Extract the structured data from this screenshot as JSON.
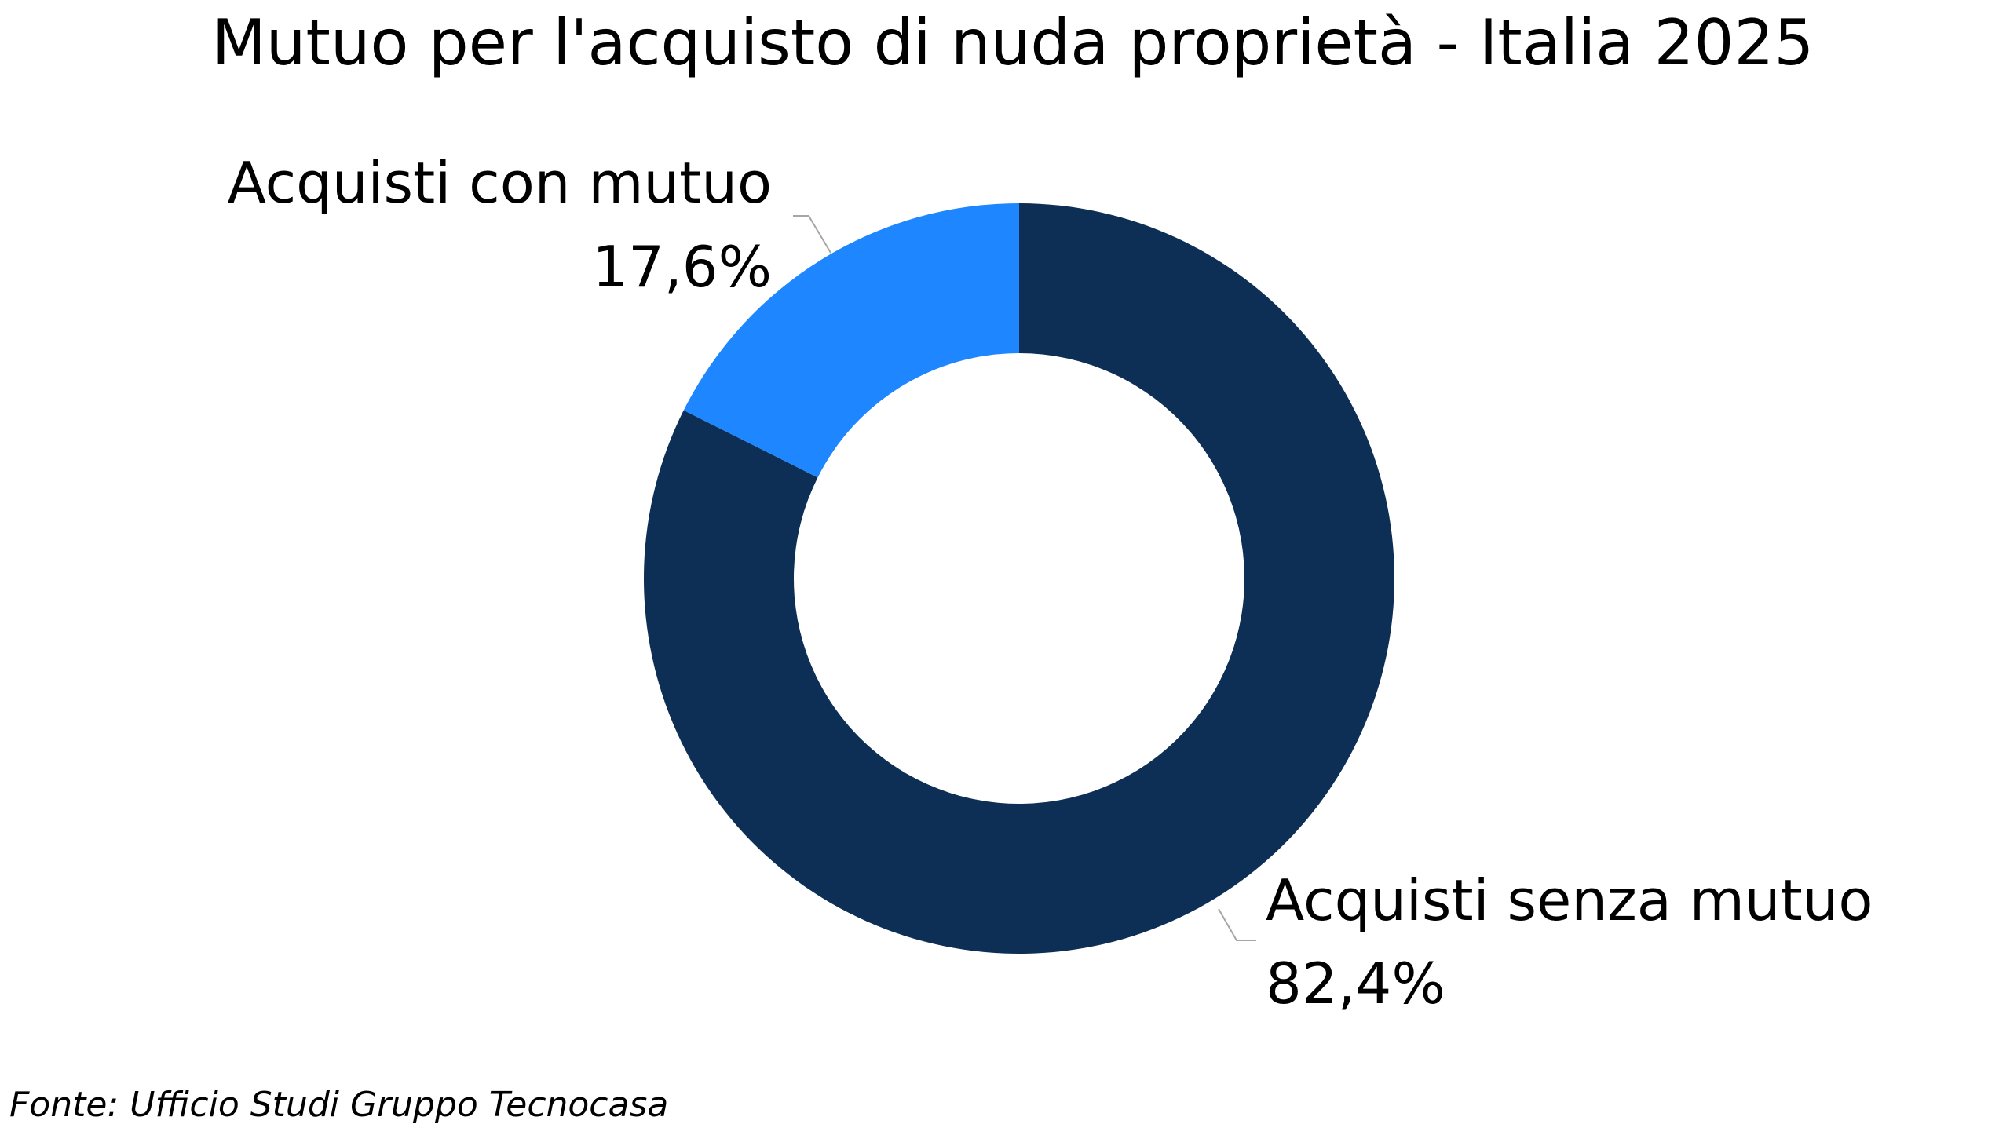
{
  "chart_data": {
    "type": "pie",
    "subtype": "donut",
    "title": "Mutuo per l'acquisto di nuda proprietà - Italia 2025",
    "slices": [
      {
        "label": "Acquisti senza mutuo",
        "value": 82.4,
        "value_label": "82,4%",
        "color": "#0e2f55"
      },
      {
        "label": "Acquisti con mutuo",
        "value": 17.6,
        "value_label": "17,6%",
        "color": "#1e86ff"
      }
    ],
    "legend": "none",
    "data_labels": "outside with leader lines"
  },
  "footer": {
    "source": "Fonte: Ufficio Studi Gruppo Tecnocasa"
  }
}
